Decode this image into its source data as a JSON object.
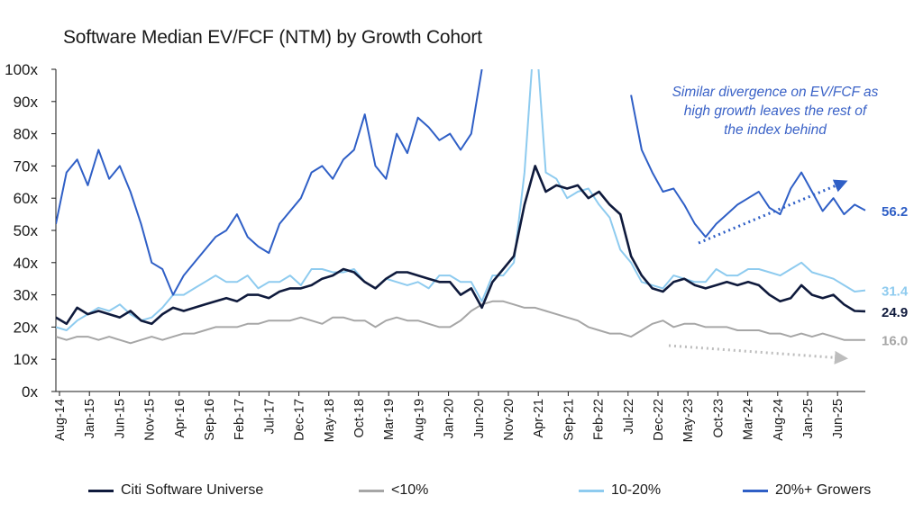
{
  "chart_data": {
    "type": "line",
    "title": "Software Median EV/FCF (NTM) by Growth Cohort",
    "ylim": [
      0,
      100
    ],
    "yticks": [
      "0x",
      "10x",
      "20x",
      "30x",
      "40x",
      "50x",
      "60x",
      "70x",
      "80x",
      "90x",
      "100x"
    ],
    "xticks": [
      "Aug-14",
      "Jan-15",
      "Jun-15",
      "Nov-15",
      "Apr-16",
      "Sep-16",
      "Feb-17",
      "Jul-17",
      "Dec-17",
      "May-18",
      "Oct-18",
      "Mar-19",
      "Aug-19",
      "Jan-20",
      "Jun-20",
      "Nov-20",
      "Apr-21",
      "Sep-21",
      "Feb-22",
      "Jul-22",
      "Dec-22",
      "May-23",
      "Oct-23",
      "Mar-24",
      "Aug-24",
      "Jan-25",
      "Jun-25"
    ],
    "series": [
      {
        "name": "Citi Software Universe",
        "color": "#0f1a3c",
        "end_label": "24.9",
        "values": [
          23,
          21,
          26,
          24,
          25,
          24,
          23,
          25,
          22,
          21,
          24,
          26,
          25,
          26,
          27,
          28,
          29,
          28,
          30,
          30,
          29,
          31,
          32,
          32,
          33,
          35,
          36,
          38,
          37,
          34,
          32,
          35,
          37,
          37,
          36,
          35,
          34,
          34,
          30,
          32,
          26,
          34,
          38,
          42,
          58,
          70,
          62,
          64,
          63,
          64,
          60,
          62,
          58,
          55,
          42,
          36,
          32,
          31,
          34,
          35,
          33,
          32,
          33,
          34,
          33,
          34,
          33,
          30,
          28,
          29,
          33,
          30,
          29,
          30,
          27,
          25,
          24.9
        ]
      },
      {
        "name": "<10%",
        "color": "#a6a6a6",
        "end_label": "16.0",
        "values": [
          17,
          16,
          17,
          17,
          16,
          17,
          16,
          15,
          16,
          17,
          16,
          17,
          18,
          18,
          19,
          20,
          20,
          20,
          21,
          21,
          22,
          22,
          22,
          23,
          22,
          21,
          23,
          23,
          22,
          22,
          20,
          22,
          23,
          22,
          22,
          21,
          20,
          20,
          22,
          25,
          27,
          28,
          28,
          27,
          26,
          26,
          25,
          24,
          23,
          22,
          20,
          19,
          18,
          18,
          17,
          19,
          21,
          22,
          20,
          21,
          21,
          20,
          20,
          20,
          19,
          19,
          19,
          18,
          18,
          17,
          18,
          17,
          18,
          17,
          16,
          16,
          16.0
        ]
      },
      {
        "name": "10-20%",
        "color": "#8ecbef",
        "end_label": "31.4",
        "values": [
          20,
          19,
          22,
          24,
          26,
          25,
          27,
          24,
          22,
          23,
          26,
          30,
          30,
          32,
          34,
          36,
          34,
          34,
          36,
          32,
          34,
          34,
          36,
          33,
          38,
          38,
          37,
          37,
          38,
          34,
          32,
          35,
          34,
          33,
          34,
          32,
          36,
          36,
          34,
          34,
          28,
          36,
          36,
          40,
          68,
          115,
          68,
          66,
          60,
          62,
          63,
          58,
          54,
          44,
          40,
          34,
          33,
          32,
          36,
          35,
          34,
          34,
          38,
          36,
          36,
          38,
          38,
          37,
          36,
          38,
          40,
          37,
          36,
          35,
          33,
          31,
          31.4
        ]
      },
      {
        "name": "20%+ Growers",
        "color": "#2f5fc6",
        "end_label": "56.2",
        "values": [
          52,
          68,
          72,
          64,
          75,
          66,
          70,
          62,
          52,
          40,
          38,
          30,
          36,
          40,
          44,
          48,
          50,
          55,
          48,
          45,
          43,
          52,
          56,
          60,
          68,
          70,
          66,
          72,
          75,
          86,
          70,
          66,
          80,
          74,
          85,
          82,
          78,
          80,
          75,
          80,
          100,
          null,
          null,
          null,
          null,
          null,
          null,
          null,
          null,
          null,
          null,
          null,
          null,
          null,
          92,
          75,
          68,
          62,
          63,
          58,
          52,
          48,
          52,
          55,
          58,
          60,
          62,
          57,
          55,
          63,
          68,
          62,
          56,
          60,
          55,
          58,
          56.2
        ]
      }
    ],
    "annotation": [
      "Similar divergence on EV/FCF as",
      "high growth leaves the rest of",
      "the index behind"
    ]
  }
}
